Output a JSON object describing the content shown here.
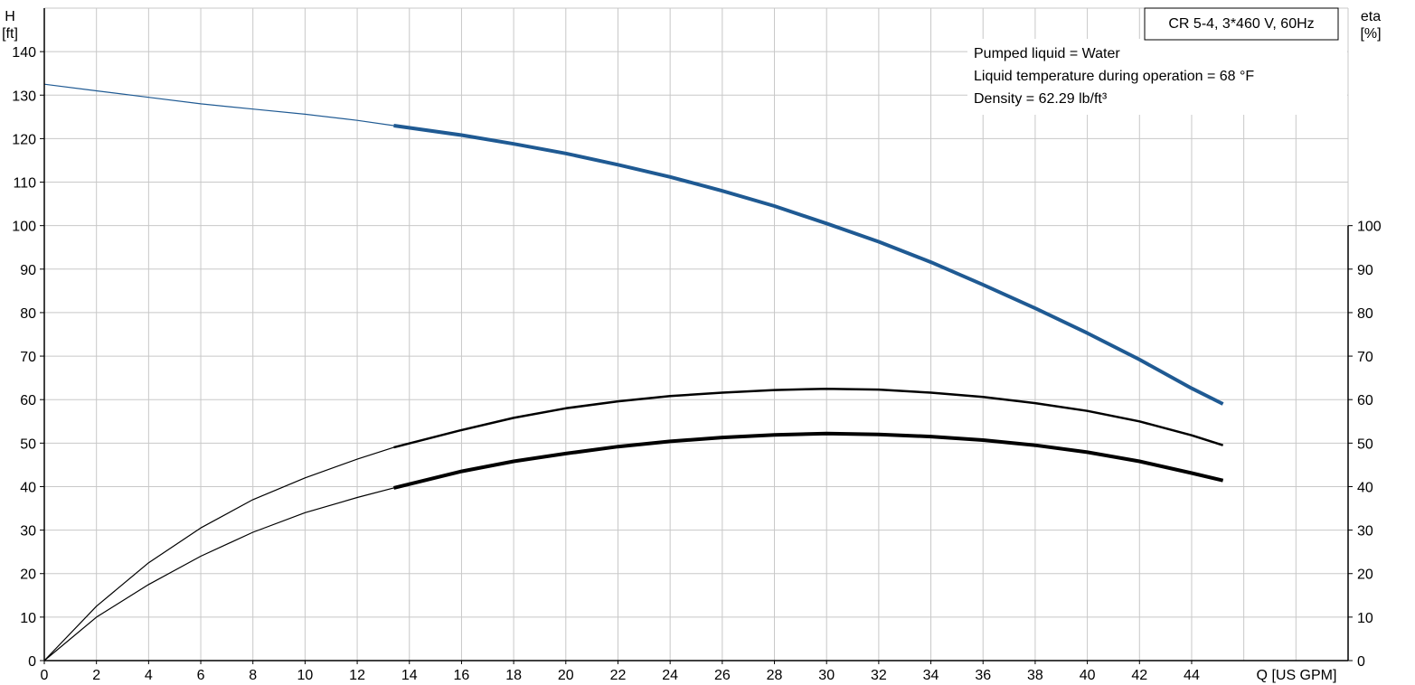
{
  "chart_data": {
    "type": "line",
    "title": "CR 5-4, 3*460 V, 60Hz",
    "notes": [
      "Pumped liquid = Water",
      "Liquid temperature during operation = 68 °F",
      "Density = 62.29 lb/ft³"
    ],
    "xlabel": "Q [US GPM]",
    "ylabel_left": [
      "H",
      "[ft]"
    ],
    "ylabel_right": [
      "eta",
      "[%]"
    ],
    "xlim": [
      0,
      50
    ],
    "ylim_left": [
      0,
      150
    ],
    "ylim_right": [
      0,
      150
    ],
    "x_ticks": [
      0,
      2,
      4,
      6,
      8,
      10,
      12,
      14,
      16,
      18,
      20,
      22,
      24,
      26,
      28,
      30,
      32,
      34,
      36,
      38,
      40,
      42,
      44
    ],
    "y_ticks_left": [
      0,
      10,
      20,
      30,
      40,
      50,
      60,
      70,
      80,
      90,
      100,
      110,
      120,
      130,
      140
    ],
    "y_ticks_right": [
      0,
      10,
      20,
      30,
      40,
      50,
      60,
      70,
      80,
      90,
      100
    ],
    "grid": true,
    "colors": {
      "head": "#1f5a93",
      "efficiency": "#000000",
      "grid": "#c8c8c8"
    },
    "series": [
      {
        "key": "head",
        "axis": "left",
        "x": [
          0,
          2,
          4,
          6,
          8,
          10,
          12,
          13.4,
          16,
          18,
          20,
          22,
          24,
          26,
          28,
          30,
          32,
          34,
          36,
          38,
          40,
          42,
          44,
          45.2
        ],
        "values": [
          132.5,
          131,
          129.5,
          128,
          126.8,
          125.6,
          124.2,
          123,
          120.8,
          118.8,
          116.6,
          114,
          111.2,
          108,
          104.5,
          100.5,
          96.3,
          91.6,
          86.4,
          81,
          75.3,
          69.2,
          62.6,
          59
        ]
      },
      {
        "key": "eta_upper",
        "axis": "right",
        "x": [
          0,
          2,
          4,
          6,
          8,
          10,
          12,
          13.4,
          16,
          18,
          20,
          22,
          24,
          26,
          28,
          30,
          32,
          34,
          36,
          38,
          40,
          42,
          44,
          45.2
        ],
        "values": [
          0,
          12.5,
          22.5,
          30.5,
          37,
          42,
          46.3,
          49,
          53,
          55.8,
          58,
          59.6,
          60.8,
          61.6,
          62.2,
          62.5,
          62.3,
          61.6,
          60.6,
          59.2,
          57.4,
          55,
          51.8,
          49.5
        ]
      },
      {
        "key": "eta_lower",
        "axis": "right",
        "x": [
          0,
          2,
          4,
          6,
          8,
          10,
          12,
          13.4,
          16,
          18,
          20,
          22,
          24,
          26,
          28,
          30,
          32,
          34,
          36,
          38,
          40,
          42,
          44,
          45.2
        ],
        "values": [
          0,
          10,
          17.5,
          24,
          29.5,
          34,
          37.5,
          39.7,
          43.5,
          45.8,
          47.6,
          49.2,
          50.4,
          51.3,
          51.9,
          52.2,
          52,
          51.5,
          50.7,
          49.5,
          47.9,
          45.8,
          43.1,
          41.4
        ]
      }
    ]
  }
}
